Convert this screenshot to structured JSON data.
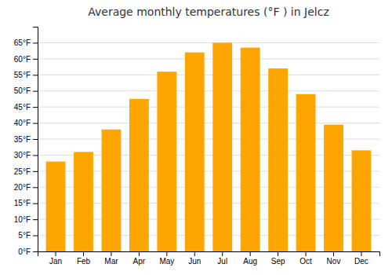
{
  "chart_data": {
    "type": "bar",
    "title": "Average monthly temperatures (°F ) in Jelcz",
    "categories": [
      "Jan",
      "Feb",
      "Mar",
      "Apr",
      "May",
      "Jun",
      "Jul",
      "Aug",
      "Sep",
      "Oct",
      "Nov",
      "Dec"
    ],
    "values": [
      28,
      31,
      38,
      47.5,
      56,
      62,
      65,
      63.5,
      57,
      49,
      39.5,
      31.5
    ],
    "color": "#FFA500",
    "ylim": [
      0,
      70
    ],
    "yticks": [
      {
        "value": 0,
        "label": "0°F"
      },
      {
        "value": 5,
        "label": "5°F"
      },
      {
        "value": 10,
        "label": "10°F"
      },
      {
        "value": 15,
        "label": "15°F"
      },
      {
        "value": 20,
        "label": "20°F"
      },
      {
        "value": 25,
        "label": "25°F"
      },
      {
        "value": 30,
        "label": "30°F"
      },
      {
        "value": 35,
        "label": "35°F"
      },
      {
        "value": 40,
        "label": "40°F"
      },
      {
        "value": 45,
        "label": "45°F"
      },
      {
        "value": 50,
        "label": "50°F"
      },
      {
        "value": 55,
        "label": "55°F"
      },
      {
        "value": 60,
        "label": "60°F"
      },
      {
        "value": 65,
        "label": "65°F"
      }
    ],
    "grid": true
  }
}
